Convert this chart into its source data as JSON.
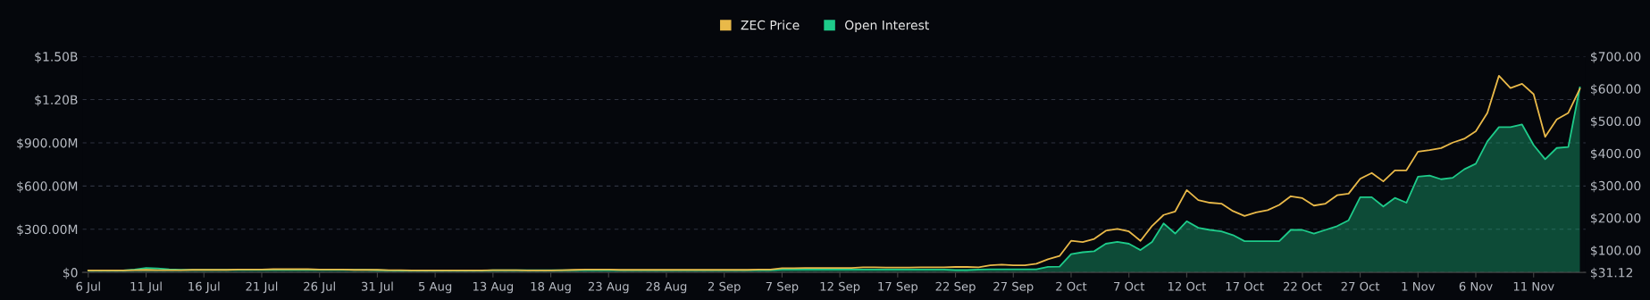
{
  "chart_data": {
    "type": "line",
    "categories": [
      "6 Jul",
      null,
      null,
      null,
      null,
      "11 Jul",
      null,
      null,
      null,
      null,
      "16 Jul",
      null,
      null,
      null,
      null,
      "21 Jul",
      null,
      null,
      null,
      null,
      "26 Jul",
      null,
      null,
      null,
      null,
      "31 Jul",
      null,
      null,
      null,
      null,
      "5 Aug",
      null,
      null,
      null,
      null,
      "13 Aug",
      null,
      null,
      null,
      null,
      "18 Aug",
      null,
      null,
      null,
      null,
      "23 Aug",
      null,
      null,
      null,
      null,
      "28 Aug",
      null,
      null,
      null,
      null,
      "2 Sep",
      null,
      null,
      null,
      null,
      "7 Sep",
      null,
      null,
      null,
      null,
      "12 Sep",
      null,
      null,
      null,
      null,
      "17 Sep",
      null,
      null,
      null,
      null,
      "22 Sep",
      null,
      null,
      null,
      null,
      "27 Sep",
      null,
      null,
      null,
      null,
      "2 Oct",
      null,
      null,
      null,
      null,
      "7 Oct",
      null,
      null,
      null,
      null,
      "12 Oct",
      null,
      null,
      null,
      null,
      "17 Oct",
      null,
      null,
      null,
      null,
      "22 Oct",
      null,
      null,
      null,
      null,
      "27 Oct",
      null,
      null,
      null,
      null,
      "1 Nov",
      null,
      null,
      null,
      null,
      "6 Nov",
      null,
      null,
      null,
      null,
      "11 Nov",
      null,
      null,
      null,
      null
    ],
    "series": [
      {
        "name": "Open Interest",
        "type": "area",
        "color": "#1ecb8a",
        "values": [
          14000000.0,
          14000000.0,
          14000000.0,
          14000000.0,
          20000000.0,
          30000000.0,
          28000000.0,
          22000000.0,
          18000000.0,
          18000000.0,
          18000000.0,
          18000000.0,
          18000000.0,
          18000000.0,
          18000000.0,
          18000000.0,
          18000000.0,
          18000000.0,
          18000000.0,
          18000000.0,
          18000000.0,
          18000000.0,
          18000000.0,
          18000000.0,
          18000000.0,
          16000000.0,
          14000000.0,
          12000000.0,
          12000000.0,
          12000000.0,
          12000000.0,
          12000000.0,
          12000000.0,
          12000000.0,
          12000000.0,
          15000000.0,
          15000000.0,
          15000000.0,
          15000000.0,
          15000000.0,
          15000000.0,
          15000000.0,
          15000000.0,
          15000000.0,
          15000000.0,
          15000000.0,
          15000000.0,
          15000000.0,
          15000000.0,
          15000000.0,
          15000000.0,
          15000000.0,
          15000000.0,
          15000000.0,
          15000000.0,
          15000000.0,
          15000000.0,
          15000000.0,
          15000000.0,
          15000000.0,
          20000000.0,
          20000000.0,
          20000000.0,
          20000000.0,
          20000000.0,
          20000000.0,
          20000000.0,
          20000000.0,
          20000000.0,
          20000000.0,
          20000000.0,
          20000000.0,
          20000000.0,
          20000000.0,
          20000000.0,
          16000000.0,
          16000000.0,
          20000000.0,
          22000000.0,
          22000000.0,
          22000000.0,
          22000000.0,
          22000000.0,
          38000000.0,
          40000000.0,
          127000000.0,
          140000000.0,
          147000000.0,
          199000000.0,
          212000000.0,
          199000000.0,
          155000000.0,
          212000000.0,
          340000000.0,
          270000000.0,
          355000000.0,
          310000000.0,
          295000000.0,
          285000000.0,
          259000000.0,
          217000000.0,
          217000000.0,
          217000000.0,
          217000000.0,
          295000000.0,
          295000000.0,
          269000000.0,
          295000000.0,
          321000000.0,
          362000000.0,
          522000000.0,
          522000000.0,
          458000000.0,
          517000000.0,
          484000000.0,
          665000000.0,
          672000000.0,
          647000000.0,
          657000000.0,
          716000000.0,
          755000000.0,
          910000000.0,
          1009000000.0,
          1009000000.0,
          1027000000.0,
          884000000.0,
          786000000.0,
          864000000.0,
          871000000.0,
          1285000000.0
        ]
      },
      {
        "name": "ZEC Price",
        "axis": "y2",
        "color": "#e9b949",
        "values": [
          37,
          37,
          37,
          37,
          38,
          39,
          38,
          38,
          38,
          39,
          39,
          39,
          39,
          40,
          40,
          40,
          41,
          41,
          41,
          41,
          40,
          40,
          40,
          39,
          39,
          39,
          38,
          38,
          37,
          37,
          37,
          37,
          37,
          37,
          37,
          38,
          38,
          38,
          37,
          37,
          37,
          38,
          39,
          40,
          40,
          40,
          39,
          39,
          39,
          39,
          39,
          39,
          39,
          39,
          39,
          39,
          39,
          39,
          40,
          40,
          44,
          44,
          45,
          45,
          45,
          45,
          45,
          47,
          47,
          46,
          46,
          46,
          47,
          47,
          47,
          48,
          48,
          47,
          53,
          55,
          53,
          53,
          58,
          72,
          82,
          129,
          125,
          135,
          160,
          166,
          158,
          129,
          175,
          209,
          220,
          286,
          255,
          247,
          244,
          221,
          206,
          217,
          224,
          240,
          267,
          261,
          238,
          244,
          270,
          275,
          321,
          339,
          313,
          347,
          347,
          405,
          410,
          416,
          433,
          445,
          468,
          525,
          640,
          602,
          615,
          583,
          451,
          505,
          525,
          600
        ]
      }
    ],
    "ylim": [
      0,
      1500000000.0
    ],
    "yticks": [
      {
        "value": 0,
        "label": "$0"
      },
      {
        "value": 300000000.0,
        "label": "$300.00M"
      },
      {
        "value": 600000000.0,
        "label": "$600.00M"
      },
      {
        "value": 900000000.0,
        "label": "$900.00M"
      },
      {
        "value": 1200000000.0,
        "label": "$1.20B"
      },
      {
        "value": 1500000000.0,
        "label": "$1.50B"
      }
    ],
    "y2lim": [
      31.12,
      700
    ],
    "y2ticks": [
      {
        "value": 31.12,
        "label": "$31.12"
      },
      {
        "value": 100,
        "label": "$100.00"
      },
      {
        "value": 200,
        "label": "$200.00"
      },
      {
        "value": 300,
        "label": "$300.00"
      },
      {
        "value": 400,
        "label": "$400.00"
      },
      {
        "value": 500,
        "label": "$500.00"
      },
      {
        "value": 600,
        "label": "$600.00"
      },
      {
        "value": 700,
        "label": "$700.00"
      }
    ],
    "grid": "y",
    "legend": "top",
    "marker": "none",
    "line_style": "solid"
  }
}
